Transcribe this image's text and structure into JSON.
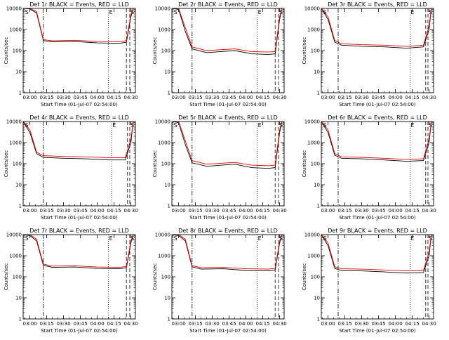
{
  "figure": {
    "background": "#ffffff",
    "line_color": "#000000",
    "events_color": "#000000",
    "lld_color": "#e00000"
  },
  "chart_data": [
    {
      "type": "line",
      "title": "Det 1r BLACK = Events, RED = LLD",
      "xlabel": "Start Time (01-Jul-07 02:54:00)",
      "ylabel": "Counts/sec",
      "yscale": "log",
      "ylim": [
        1,
        10000
      ],
      "xlim": [
        "02:54",
        "04:34"
      ],
      "x_ticks": [
        "03:00",
        "03:15",
        "03:30",
        "03:45",
        "04:00",
        "04:15",
        "04:30"
      ],
      "y_ticks": [
        "1",
        "10",
        "100",
        "1000",
        "10000"
      ],
      "annotations": [
        {
          "time": "03:12",
          "style": "dash-dot"
        },
        {
          "time": "04:10",
          "style": "dotted",
          "label": "E"
        },
        {
          "time": "04:26",
          "style": "dashed"
        },
        {
          "time": "04:29",
          "style": "dashed",
          "label": "S"
        },
        {
          "time": "02:55",
          "style": "none",
          "label": "S"
        }
      ],
      "series": [
        {
          "name": "Events",
          "color": "black",
          "x": [
            "02:54",
            "03:00",
            "03:06",
            "03:12",
            "03:20",
            "03:40",
            "04:00",
            "04:20",
            "04:26",
            "04:30",
            "04:32"
          ],
          "y": [
            10000,
            9500,
            6000,
            300,
            260,
            270,
            230,
            220,
            250,
            4000,
            10000
          ]
        },
        {
          "name": "LLD",
          "color": "red",
          "x": [
            "02:54",
            "03:00",
            "03:06",
            "03:12",
            "03:20",
            "03:40",
            "04:00",
            "04:20",
            "04:26",
            "04:30",
            "04:32"
          ],
          "y": [
            10000,
            10000,
            7000,
            330,
            290,
            310,
            270,
            260,
            300,
            5000,
            10000
          ]
        }
      ]
    },
    {
      "type": "line",
      "title": "Det 2r BLACK = Events, RED = LLD",
      "xlabel": "Start Time (01-Jul-07 02:54:00)",
      "ylabel": "Counts/sec",
      "yscale": "log",
      "ylim": [
        1,
        10000
      ],
      "xlim": [
        "02:54",
        "04:34"
      ],
      "x_ticks": [
        "03:00",
        "03:15",
        "03:30",
        "03:45",
        "04:00",
        "04:15",
        "04:30"
      ],
      "y_ticks": [
        "1",
        "10",
        "100",
        "1000",
        "10000"
      ],
      "annotations": [
        {
          "time": "03:12",
          "style": "dash-dot"
        },
        {
          "time": "04:10",
          "style": "dotted",
          "label": "E"
        },
        {
          "time": "04:26",
          "style": "dashed"
        },
        {
          "time": "04:29",
          "style": "dashed",
          "label": "S"
        },
        {
          "time": "02:55",
          "style": "none",
          "label": "S"
        }
      ],
      "series": [
        {
          "name": "Events",
          "color": "black",
          "x": [
            "02:54",
            "03:00",
            "03:06",
            "03:12",
            "03:25",
            "03:50",
            "04:05",
            "04:20",
            "04:26",
            "04:30",
            "04:32"
          ],
          "y": [
            10000,
            9000,
            800,
            120,
            80,
            100,
            70,
            65,
            70,
            3000,
            10000
          ]
        },
        {
          "name": "LLD",
          "color": "red",
          "x": [
            "02:54",
            "03:00",
            "03:06",
            "03:12",
            "03:25",
            "03:50",
            "04:05",
            "04:20",
            "04:26",
            "04:30",
            "04:32"
          ],
          "y": [
            10000,
            10000,
            1200,
            150,
            100,
            120,
            90,
            85,
            90,
            4000,
            10000
          ]
        }
      ]
    },
    {
      "type": "line",
      "title": "Det 3r BLACK = Events, RED = LLD",
      "xlabel": "Start Time (01-Jul-07 02:54:00)",
      "ylabel": "Counts/sec",
      "yscale": "log",
      "ylim": [
        1,
        10000
      ],
      "xlim": [
        "02:54",
        "04:34"
      ],
      "x_ticks": [
        "03:00",
        "03:15",
        "03:30",
        "03:45",
        "04:00",
        "04:15",
        "04:30"
      ],
      "y_ticks": [
        "1",
        "10",
        "100",
        "1000",
        "10000"
      ],
      "annotations": [
        {
          "time": "03:09",
          "style": "dash-dot"
        },
        {
          "time": "04:13",
          "style": "dotted",
          "label": "E"
        },
        {
          "time": "04:27",
          "style": "dashed"
        },
        {
          "time": "04:29",
          "style": "dashed",
          "label": "S"
        },
        {
          "time": "02:55",
          "style": "none",
          "label": "S"
        }
      ],
      "series": [
        {
          "name": "Events",
          "color": "black",
          "x": [
            "02:54",
            "03:00",
            "03:06",
            "03:12",
            "03:30",
            "03:50",
            "04:10",
            "04:25",
            "04:30",
            "04:32"
          ],
          "y": [
            10000,
            3000,
            250,
            180,
            160,
            150,
            130,
            150,
            1000,
            10000
          ]
        },
        {
          "name": "LLD",
          "color": "red",
          "x": [
            "02:54",
            "03:00",
            "03:06",
            "03:12",
            "03:30",
            "03:50",
            "04:10",
            "04:25",
            "04:30",
            "04:32"
          ],
          "y": [
            10000,
            4000,
            300,
            210,
            190,
            180,
            160,
            180,
            1500,
            10000
          ]
        }
      ]
    },
    {
      "type": "line",
      "title": "Det 4r BLACK = Events, RED = LLD",
      "xlabel": "Start Time (01-Jul-07 02:54:00)",
      "ylabel": "Counts/sec",
      "yscale": "log",
      "ylim": [
        1,
        10000
      ],
      "xlim": [
        "02:54",
        "04:34"
      ],
      "x_ticks": [
        "03:00",
        "03:15",
        "03:30",
        "03:45",
        "04:00",
        "04:15",
        "04:30"
      ],
      "y_ticks": [
        "1",
        "10",
        "100",
        "1000",
        "10000"
      ],
      "annotations": [
        {
          "time": "03:12",
          "style": "dash-dot"
        },
        {
          "time": "04:13",
          "style": "dotted",
          "label": "E"
        },
        {
          "time": "04:27",
          "style": "dashed"
        },
        {
          "time": "04:29",
          "style": "dashed",
          "label": "S"
        },
        {
          "time": "02:55",
          "style": "none",
          "label": "S"
        }
      ],
      "series": [
        {
          "name": "Events",
          "color": "black",
          "x": [
            "02:54",
            "03:00",
            "03:06",
            "03:12",
            "03:30",
            "03:50",
            "04:10",
            "04:25",
            "04:30",
            "04:32"
          ],
          "y": [
            10000,
            3000,
            300,
            200,
            180,
            170,
            150,
            150,
            1000,
            10000
          ]
        },
        {
          "name": "LLD",
          "color": "red",
          "x": [
            "02:54",
            "03:00",
            "03:06",
            "03:12",
            "03:30",
            "03:50",
            "04:10",
            "04:25",
            "04:30",
            "04:32"
          ],
          "y": [
            10000,
            4000,
            350,
            240,
            220,
            210,
            190,
            190,
            1500,
            10000
          ]
        }
      ]
    },
    {
      "type": "line",
      "title": "Det 5r BLACK = Events, RED = LLD",
      "xlabel": "Start Time (01-Jul-07 02:54:00)",
      "ylabel": "Counts/sec",
      "yscale": "log",
      "ylim": [
        1,
        10000
      ],
      "xlim": [
        "02:54",
        "04:34"
      ],
      "x_ticks": [
        "03:00",
        "03:15",
        "03:30",
        "03:45",
        "04:00",
        "04:15",
        "04:30"
      ],
      "y_ticks": [
        "1",
        "10",
        "100",
        "1000",
        "10000"
      ],
      "annotations": [
        {
          "time": "03:12",
          "style": "dash-dot"
        },
        {
          "time": "04:10",
          "style": "dotted",
          "label": "E"
        },
        {
          "time": "04:26",
          "style": "dashed"
        },
        {
          "time": "04:29",
          "style": "dashed",
          "label": "S"
        },
        {
          "time": "02:55",
          "style": "none",
          "label": "S"
        }
      ],
      "series": [
        {
          "name": "Events",
          "color": "black",
          "x": [
            "02:54",
            "03:00",
            "03:06",
            "03:12",
            "03:25",
            "03:50",
            "04:05",
            "04:20",
            "04:26",
            "04:30",
            "04:32"
          ],
          "y": [
            10000,
            9000,
            800,
            110,
            75,
            95,
            65,
            60,
            65,
            3000,
            10000
          ]
        },
        {
          "name": "LLD",
          "color": "red",
          "x": [
            "02:54",
            "03:00",
            "03:06",
            "03:12",
            "03:25",
            "03:50",
            "04:05",
            "04:20",
            "04:26",
            "04:30",
            "04:32"
          ],
          "y": [
            10000,
            10000,
            1200,
            140,
            95,
            115,
            85,
            80,
            85,
            4000,
            10000
          ]
        }
      ]
    },
    {
      "type": "line",
      "title": "Det 6r BLACK = Events, RED = LLD",
      "xlabel": "Start Time (01-Jul-07 02:54:00)",
      "ylabel": "Counts/sec",
      "yscale": "log",
      "ylim": [
        1,
        10000
      ],
      "xlim": [
        "02:54",
        "04:34"
      ],
      "x_ticks": [
        "03:00",
        "03:15",
        "03:30",
        "03:45",
        "04:00",
        "04:15",
        "04:30"
      ],
      "y_ticks": [
        "1",
        "10",
        "100",
        "1000",
        "10000"
      ],
      "annotations": [
        {
          "time": "03:09",
          "style": "dash-dot"
        },
        {
          "time": "04:13",
          "style": "dotted",
          "label": "E"
        },
        {
          "time": "04:27",
          "style": "dashed"
        },
        {
          "time": "04:29",
          "style": "dashed",
          "label": "S"
        },
        {
          "time": "02:55",
          "style": "none",
          "label": "S"
        }
      ],
      "series": [
        {
          "name": "Events",
          "color": "black",
          "x": [
            "02:54",
            "03:00",
            "03:06",
            "03:12",
            "03:30",
            "03:50",
            "04:10",
            "04:25",
            "04:30",
            "04:32"
          ],
          "y": [
            10000,
            3000,
            250,
            180,
            170,
            150,
            130,
            140,
            1000,
            10000
          ]
        },
        {
          "name": "LLD",
          "color": "red",
          "x": [
            "02:54",
            "03:00",
            "03:06",
            "03:12",
            "03:30",
            "03:50",
            "04:10",
            "04:25",
            "04:30",
            "04:32"
          ],
          "y": [
            10000,
            4000,
            300,
            210,
            200,
            180,
            160,
            170,
            1500,
            10000
          ]
        }
      ]
    },
    {
      "type": "line",
      "title": "Det 7r BLACK = Events, RED = LLD",
      "xlabel": "Start Time (01-Jul-07 02:54:00)",
      "ylabel": "Counts/sec",
      "yscale": "log",
      "ylim": [
        1,
        10000
      ],
      "xlim": [
        "02:54",
        "04:34"
      ],
      "x_ticks": [
        "03:00",
        "03:15",
        "03:30",
        "03:45",
        "04:00",
        "04:15",
        "04:30"
      ],
      "y_ticks": [
        "1",
        "10",
        "100",
        "1000",
        "10000"
      ],
      "annotations": [
        {
          "time": "03:12",
          "style": "dash-dot"
        },
        {
          "time": "04:10",
          "style": "dotted",
          "label": "E"
        },
        {
          "time": "04:26",
          "style": "dashed"
        },
        {
          "time": "04:29",
          "style": "dashed",
          "label": "S"
        },
        {
          "time": "02:55",
          "style": "none",
          "label": "S"
        }
      ],
      "series": [
        {
          "name": "Events",
          "color": "black",
          "x": [
            "02:54",
            "03:00",
            "03:06",
            "03:12",
            "03:20",
            "03:40",
            "04:00",
            "04:20",
            "04:26",
            "04:30",
            "04:32"
          ],
          "y": [
            10000,
            9000,
            5000,
            350,
            280,
            290,
            250,
            240,
            270,
            4000,
            10000
          ]
        },
        {
          "name": "LLD",
          "color": "red",
          "x": [
            "02:54",
            "03:00",
            "03:06",
            "03:12",
            "03:20",
            "03:40",
            "04:00",
            "04:20",
            "04:26",
            "04:30",
            "04:32"
          ],
          "y": [
            10000,
            10000,
            6000,
            400,
            320,
            330,
            290,
            280,
            310,
            5000,
            10000
          ]
        }
      ]
    },
    {
      "type": "line",
      "title": "Det 8r BLACK = Events, RED = LLD",
      "xlabel": "Start Time (01-Jul-07 02:54:00)",
      "ylabel": "Counts/sec",
      "yscale": "log",
      "ylim": [
        1,
        10000
      ],
      "xlim": [
        "02:54",
        "04:34"
      ],
      "x_ticks": [
        "03:00",
        "03:15",
        "03:30",
        "03:45",
        "04:00",
        "04:15",
        "04:30"
      ],
      "y_ticks": [
        "1",
        "10",
        "100",
        "1000",
        "10000"
      ],
      "annotations": [
        {
          "time": "03:12",
          "style": "dash-dot"
        },
        {
          "time": "04:10",
          "style": "dotted",
          "label": "E"
        },
        {
          "time": "04:26",
          "style": "dashed"
        },
        {
          "time": "04:29",
          "style": "dashed",
          "label": "S"
        },
        {
          "time": "02:55",
          "style": "none",
          "label": "S"
        }
      ],
      "series": [
        {
          "name": "Events",
          "color": "black",
          "x": [
            "02:54",
            "03:00",
            "03:06",
            "03:12",
            "03:20",
            "03:40",
            "04:00",
            "04:20",
            "04:26",
            "04:30",
            "04:32"
          ],
          "y": [
            10000,
            9000,
            5000,
            300,
            230,
            240,
            200,
            190,
            210,
            4000,
            10000
          ]
        },
        {
          "name": "LLD",
          "color": "red",
          "x": [
            "02:54",
            "03:00",
            "03:06",
            "03:12",
            "03:20",
            "03:40",
            "04:00",
            "04:20",
            "04:26",
            "04:30",
            "04:32"
          ],
          "y": [
            10000,
            10000,
            6000,
            340,
            270,
            280,
            240,
            230,
            250,
            5000,
            10000
          ]
        }
      ]
    },
    {
      "type": "line",
      "title": "Det 9r BLACK = Events, RED = LLD",
      "xlabel": "Start Time (01-Jul-07 02:54:00)",
      "ylabel": "Counts/sec",
      "yscale": "log",
      "ylim": [
        1,
        10000
      ],
      "xlim": [
        "02:54",
        "04:34"
      ],
      "x_ticks": [
        "03:00",
        "03:15",
        "03:30",
        "03:45",
        "04:00",
        "04:15",
        "04:30"
      ],
      "y_ticks": [
        "1",
        "10",
        "100",
        "1000",
        "10000"
      ],
      "annotations": [
        {
          "time": "03:09",
          "style": "dash-dot"
        },
        {
          "time": "04:13",
          "style": "dotted",
          "label": "E"
        },
        {
          "time": "04:27",
          "style": "dashed"
        },
        {
          "time": "04:29",
          "style": "dashed",
          "label": "S"
        },
        {
          "time": "02:55",
          "style": "none",
          "label": "S"
        }
      ],
      "series": [
        {
          "name": "Events",
          "color": "black",
          "x": [
            "02:54",
            "03:00",
            "03:06",
            "03:12",
            "03:30",
            "03:50",
            "04:10",
            "04:25",
            "04:30",
            "04:32"
          ],
          "y": [
            10000,
            3000,
            250,
            200,
            190,
            170,
            150,
            160,
            1000,
            10000
          ]
        },
        {
          "name": "LLD",
          "color": "red",
          "x": [
            "02:54",
            "03:00",
            "03:06",
            "03:12",
            "03:30",
            "03:50",
            "04:10",
            "04:25",
            "04:30",
            "04:32"
          ],
          "y": [
            10000,
            4000,
            300,
            240,
            230,
            210,
            190,
            200,
            1500,
            10000
          ]
        }
      ]
    }
  ]
}
